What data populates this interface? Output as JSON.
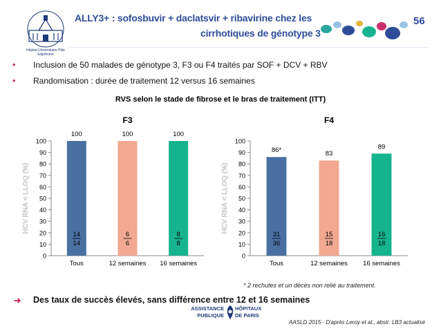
{
  "header": {
    "title_line1": "ALLY3+ : sofosbuvir + daclatsvir + ribavirine chez les",
    "title_line2": "cirrhotiques de génotype 3",
    "slide_number": "56",
    "logo_caption": "Hôpital Universitaire Pitié Salpêtrière",
    "colors": {
      "title": "#2e4c9a",
      "bullet": "#c9306b"
    }
  },
  "bullets": [
    "Inclusion de 50 malades de génotype 3, F3 ou F4 traités par SOF + DCV + RBV",
    "Randomisation : durée de traitement 12 versus 16 semaines"
  ],
  "charts_title": "RVS selon le stade de fibrose et le bras de traitement (ITT)",
  "chart_data": [
    {
      "type": "bar",
      "title": "F3",
      "ylabel": "HCV RNA < LLOQ (%)",
      "ylim": [
        0,
        100
      ],
      "yticks": [
        0,
        10,
        20,
        30,
        40,
        50,
        60,
        70,
        80,
        90,
        100
      ],
      "grid": false,
      "categories": [
        "Tous",
        "12 semaines",
        "16 semaines"
      ],
      "values": [
        100,
        100,
        100
      ],
      "value_labels": [
        "100",
        "100",
        "100"
      ],
      "numerators": [
        "14",
        "6",
        "8"
      ],
      "denominators": [
        "14",
        "6",
        "8"
      ],
      "colors": [
        "#4a70a2",
        "#f2a891",
        "#16b48e"
      ]
    },
    {
      "type": "bar",
      "title": "F4",
      "ylabel": "HCV RNA < LLOQ (%)",
      "ylim": [
        0,
        100
      ],
      "yticks": [
        0,
        10,
        20,
        30,
        40,
        50,
        60,
        70,
        80,
        90,
        100
      ],
      "grid": false,
      "categories": [
        "Tous",
        "12 semaines",
        "16 semaines"
      ],
      "values": [
        86,
        83,
        89
      ],
      "value_labels": [
        "86*",
        "83",
        "89"
      ],
      "numerators": [
        "31",
        "15",
        "16"
      ],
      "denominators": [
        "36",
        "18",
        "18"
      ],
      "colors": [
        "#4a70a2",
        "#f2a891",
        "#16b48e"
      ]
    }
  ],
  "footnote": "* 2 rechutes et un décès non relié au traitement.",
  "conclusion": "Des taux de succès élevés, sans différence entre 12 et 16 semaines",
  "footer_logo": {
    "left_line1": "ASSISTANCE",
    "left_line2": "PUBLIQUE",
    "right_line1": "HÔPITAUX",
    "right_line2": "DE PARIS"
  },
  "source": "AASLD 2015 - D'après Leroy  et al., abstr. LB3 actualisé"
}
